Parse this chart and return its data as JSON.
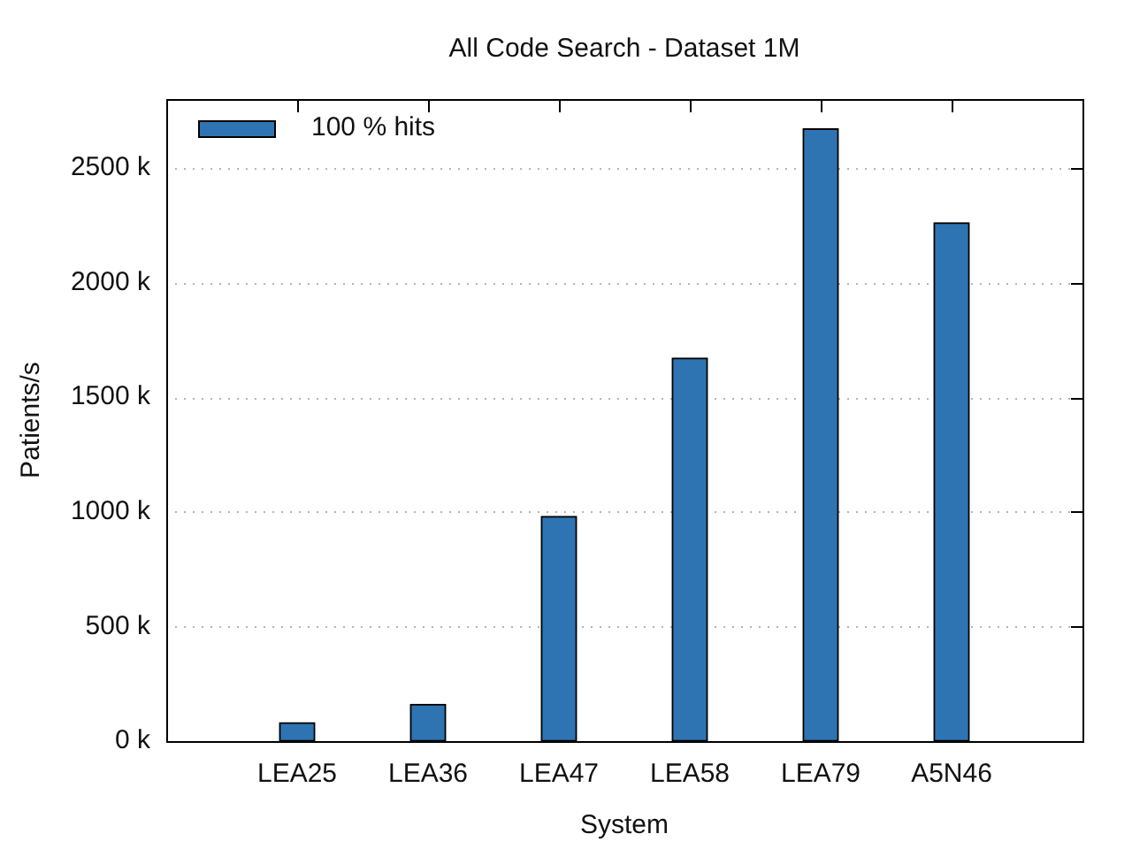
{
  "chart_data": {
    "type": "bar",
    "title": "All Code Search - Dataset 1M",
    "xlabel": "System",
    "ylabel": "Patients/s",
    "categories": [
      "LEA25",
      "LEA36",
      "LEA47",
      "LEA58",
      "LEA79",
      "A5N46"
    ],
    "series": [
      {
        "name": "100 % hits",
        "color": "#2e74b2",
        "values": [
          80,
          160,
          980,
          1670,
          2670,
          2260
        ]
      }
    ],
    "ylim": [
      0,
      2800
    ],
    "yticks": [
      {
        "value": 0,
        "label": "0 k"
      },
      {
        "value": 500,
        "label": "500 k"
      },
      {
        "value": 1000,
        "label": "1000 k"
      },
      {
        "value": 1500,
        "label": "1500 k"
      },
      {
        "value": 2000,
        "label": "2000 k"
      },
      {
        "value": 2500,
        "label": "2500 k"
      }
    ],
    "grid": "y",
    "legend": "top left"
  }
}
